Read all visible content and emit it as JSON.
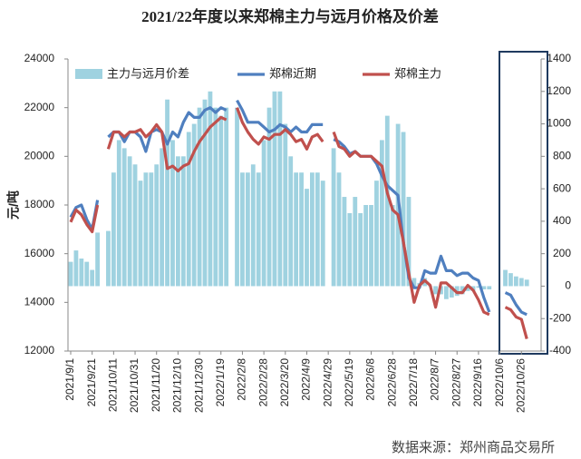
{
  "chart_data": {
    "type": "combo",
    "title": "2021/22年度以来郑棉主力与远月价格及价差",
    "y_label": "元/吨",
    "source": "数据来源：郑州商品交易所",
    "categories": [
      "2021/9/1",
      null,
      null,
      null,
      "2021/9/21",
      null,
      null,
      null,
      "2021/10/11",
      null,
      null,
      null,
      "2021/10/31",
      null,
      null,
      null,
      "2021/11/20",
      null,
      null,
      null,
      "2021/12/10",
      null,
      null,
      null,
      "2021/12/30",
      null,
      null,
      null,
      "2022/1/19",
      null,
      null,
      null,
      "2022/2/8",
      null,
      null,
      null,
      "2022/2/28",
      null,
      null,
      null,
      "2022/3/20",
      null,
      null,
      null,
      "2022/4/9",
      null,
      null,
      null,
      "2022/4/29",
      null,
      null,
      null,
      "2022/5/19",
      null,
      null,
      null,
      "2022/6/8",
      null,
      null,
      null,
      "2022/6/28",
      null,
      null,
      null,
      "2022/7/18",
      null,
      null,
      null,
      "2022/8/7",
      null,
      null,
      null,
      "2022/8/27",
      null,
      null,
      null,
      "2022/9/16",
      null,
      null,
      null,
      "2022/10/6",
      null,
      null,
      null,
      "2022/10/26",
      null,
      null,
      null
    ],
    "series": [
      {
        "name": "主力与远月价差",
        "type": "bar",
        "axis": "y2",
        "color": "#9fd2e0",
        "values": [
          150,
          220,
          170,
          150,
          100,
          330,
          null,
          340,
          700,
          900,
          850,
          800,
          750,
          650,
          700,
          700,
          750,
          850,
          1150,
          900,
          800,
          800,
          950,
          1000,
          1100,
          1150,
          1200,
          1100,
          1050,
          1100,
          null,
          1100,
          700,
          700,
          750,
          700,
          900,
          1100,
          1200,
          1200,
          1000,
          800,
          700,
          700,
          600,
          700,
          700,
          650,
          null,
          850,
          700,
          550,
          450,
          550,
          450,
          500,
          500,
          650,
          900,
          1050,
          500,
          1000,
          950,
          550,
          50,
          20,
          50,
          0,
          -50,
          -50,
          -80,
          -70,
          -60,
          -50,
          -30,
          -30,
          -10,
          -20,
          -20,
          null,
          null,
          100,
          80,
          60,
          50,
          40,
          null,
          null
        ]
      },
      {
        "name": "郑棉近期",
        "type": "line",
        "color": "#4f7fbf",
        "values": [
          17500,
          17900,
          18000,
          17400,
          17000,
          18200,
          null,
          20800,
          21000,
          21000,
          20600,
          21000,
          21000,
          20800,
          20200,
          21000,
          21100,
          21000,
          20500,
          21000,
          20800,
          21400,
          21800,
          21600,
          21600,
          21900,
          22000,
          21800,
          22000,
          21900,
          null,
          22300,
          21900,
          21400,
          21400,
          21400,
          21200,
          21000,
          21100,
          21300,
          21200,
          21000,
          21200,
          21000,
          21000,
          21300,
          21300,
          21300,
          null,
          20700,
          20600,
          20400,
          20100,
          20200,
          20000,
          20000,
          20000,
          19700,
          19200,
          18800,
          18600,
          18400,
          16500,
          15000,
          14600,
          14600,
          15300,
          15200,
          15200,
          15900,
          15300,
          15300,
          15100,
          15200,
          15200,
          15000,
          14900,
          14200,
          13600,
          null,
          null,
          14400,
          14300,
          13900,
          13600,
          13500,
          null,
          null
        ]
      },
      {
        "name": "郑棉主力",
        "type": "line",
        "color": "#c0504d",
        "values": [
          17300,
          17800,
          17600,
          17200,
          16900,
          18000,
          null,
          20300,
          21000,
          21000,
          20800,
          21000,
          21000,
          21100,
          20800,
          21000,
          21300,
          21000,
          19500,
          19600,
          19400,
          19600,
          19700,
          20200,
          20600,
          20900,
          21200,
          21400,
          21600,
          21500,
          null,
          22000,
          21400,
          21000,
          20700,
          20500,
          20800,
          20700,
          20900,
          20900,
          21100,
          20900,
          20600,
          20700,
          20300,
          20800,
          20900,
          20600,
          null,
          21000,
          20400,
          20300,
          20000,
          20200,
          20000,
          20000,
          20000,
          19800,
          19600,
          18500,
          17800,
          17600,
          16500,
          15200,
          14000,
          14700,
          14900,
          14700,
          13800,
          14800,
          14800,
          14600,
          14400,
          14400,
          14700,
          14500,
          14100,
          13600,
          13500,
          null,
          null,
          13800,
          13700,
          13400,
          13300,
          12500,
          null,
          null
        ]
      }
    ],
    "ylim": [
      12000,
      24000
    ],
    "yticks": [
      12000,
      14000,
      16000,
      18000,
      20000,
      22000,
      24000
    ],
    "y2lim": [
      -400,
      1400
    ],
    "y2ticks": [
      -400,
      -200,
      0,
      200,
      400,
      600,
      800,
      1000,
      1200,
      1400
    ]
  }
}
